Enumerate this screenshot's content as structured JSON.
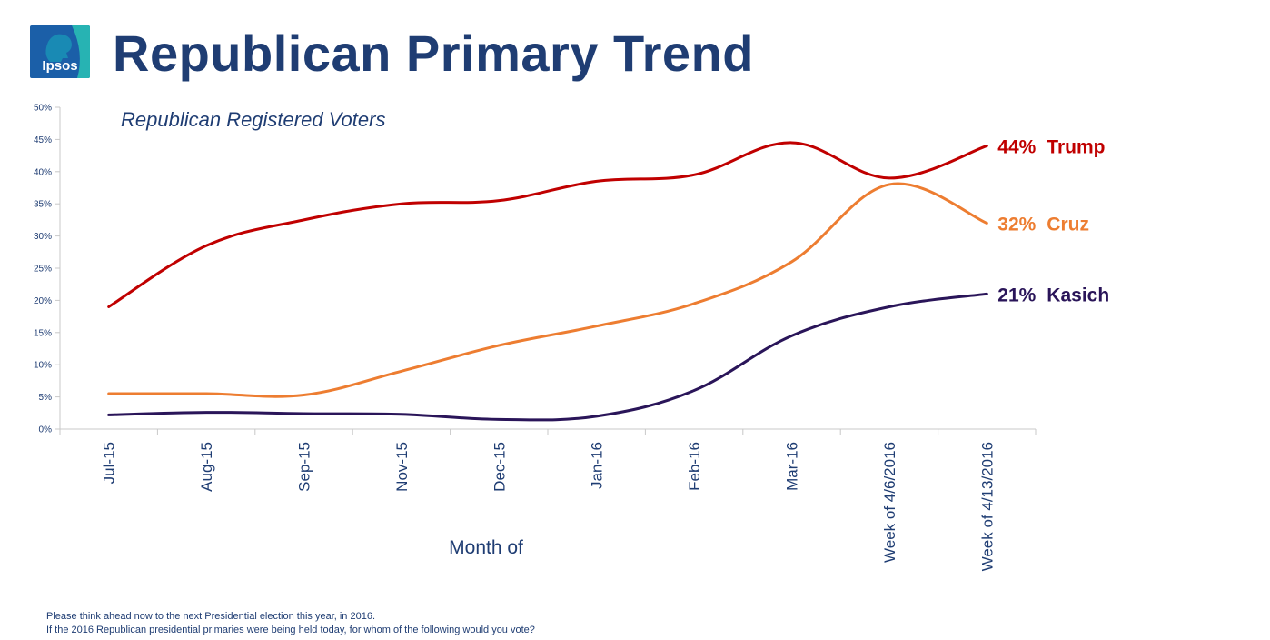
{
  "header": {
    "logo_text": "Ipsos",
    "title": "Republican Primary Trend"
  },
  "footnote": {
    "line1": "Please think ahead now to the next Presidential election this year, in 2016.",
    "line2": "If the 2016 Republican presidential primaries were being held today, for whom of the following would you vote?"
  },
  "chart_data": {
    "type": "line",
    "title": "Republican Primary Trend",
    "subtitle": "Republican Registered Voters",
    "xlabel": "Month of",
    "ylabel": "",
    "ylim": [
      0,
      50
    ],
    "yticks": [
      "0%",
      "5%",
      "10%",
      "15%",
      "20%",
      "25%",
      "30%",
      "35%",
      "40%",
      "45%",
      "50%"
    ],
    "categories": [
      "Jul-15",
      "Aug-15",
      "Sep-15",
      "Nov-15",
      "Dec-15",
      "Jan-16",
      "Feb-16",
      "Mar-16",
      "Week of 4/6/2016",
      "Week of 4/13/2016"
    ],
    "series": [
      {
        "name": "Trump",
        "color": "#c00000",
        "values": [
          19,
          28.5,
          32.5,
          35,
          35.5,
          38.5,
          39.5,
          44.5,
          39,
          44
        ],
        "end_label": "44%"
      },
      {
        "name": "Cruz",
        "color": "#ed7d31",
        "values": [
          5.5,
          5.5,
          5.3,
          9,
          13,
          16,
          19.5,
          26,
          38,
          32
        ],
        "end_label": "32%"
      },
      {
        "name": "Kasich",
        "color": "#2a1559",
        "values": [
          2.2,
          2.6,
          2.4,
          2.3,
          1.5,
          2,
          6,
          14.5,
          19,
          21
        ],
        "end_label": "21%"
      }
    ]
  }
}
